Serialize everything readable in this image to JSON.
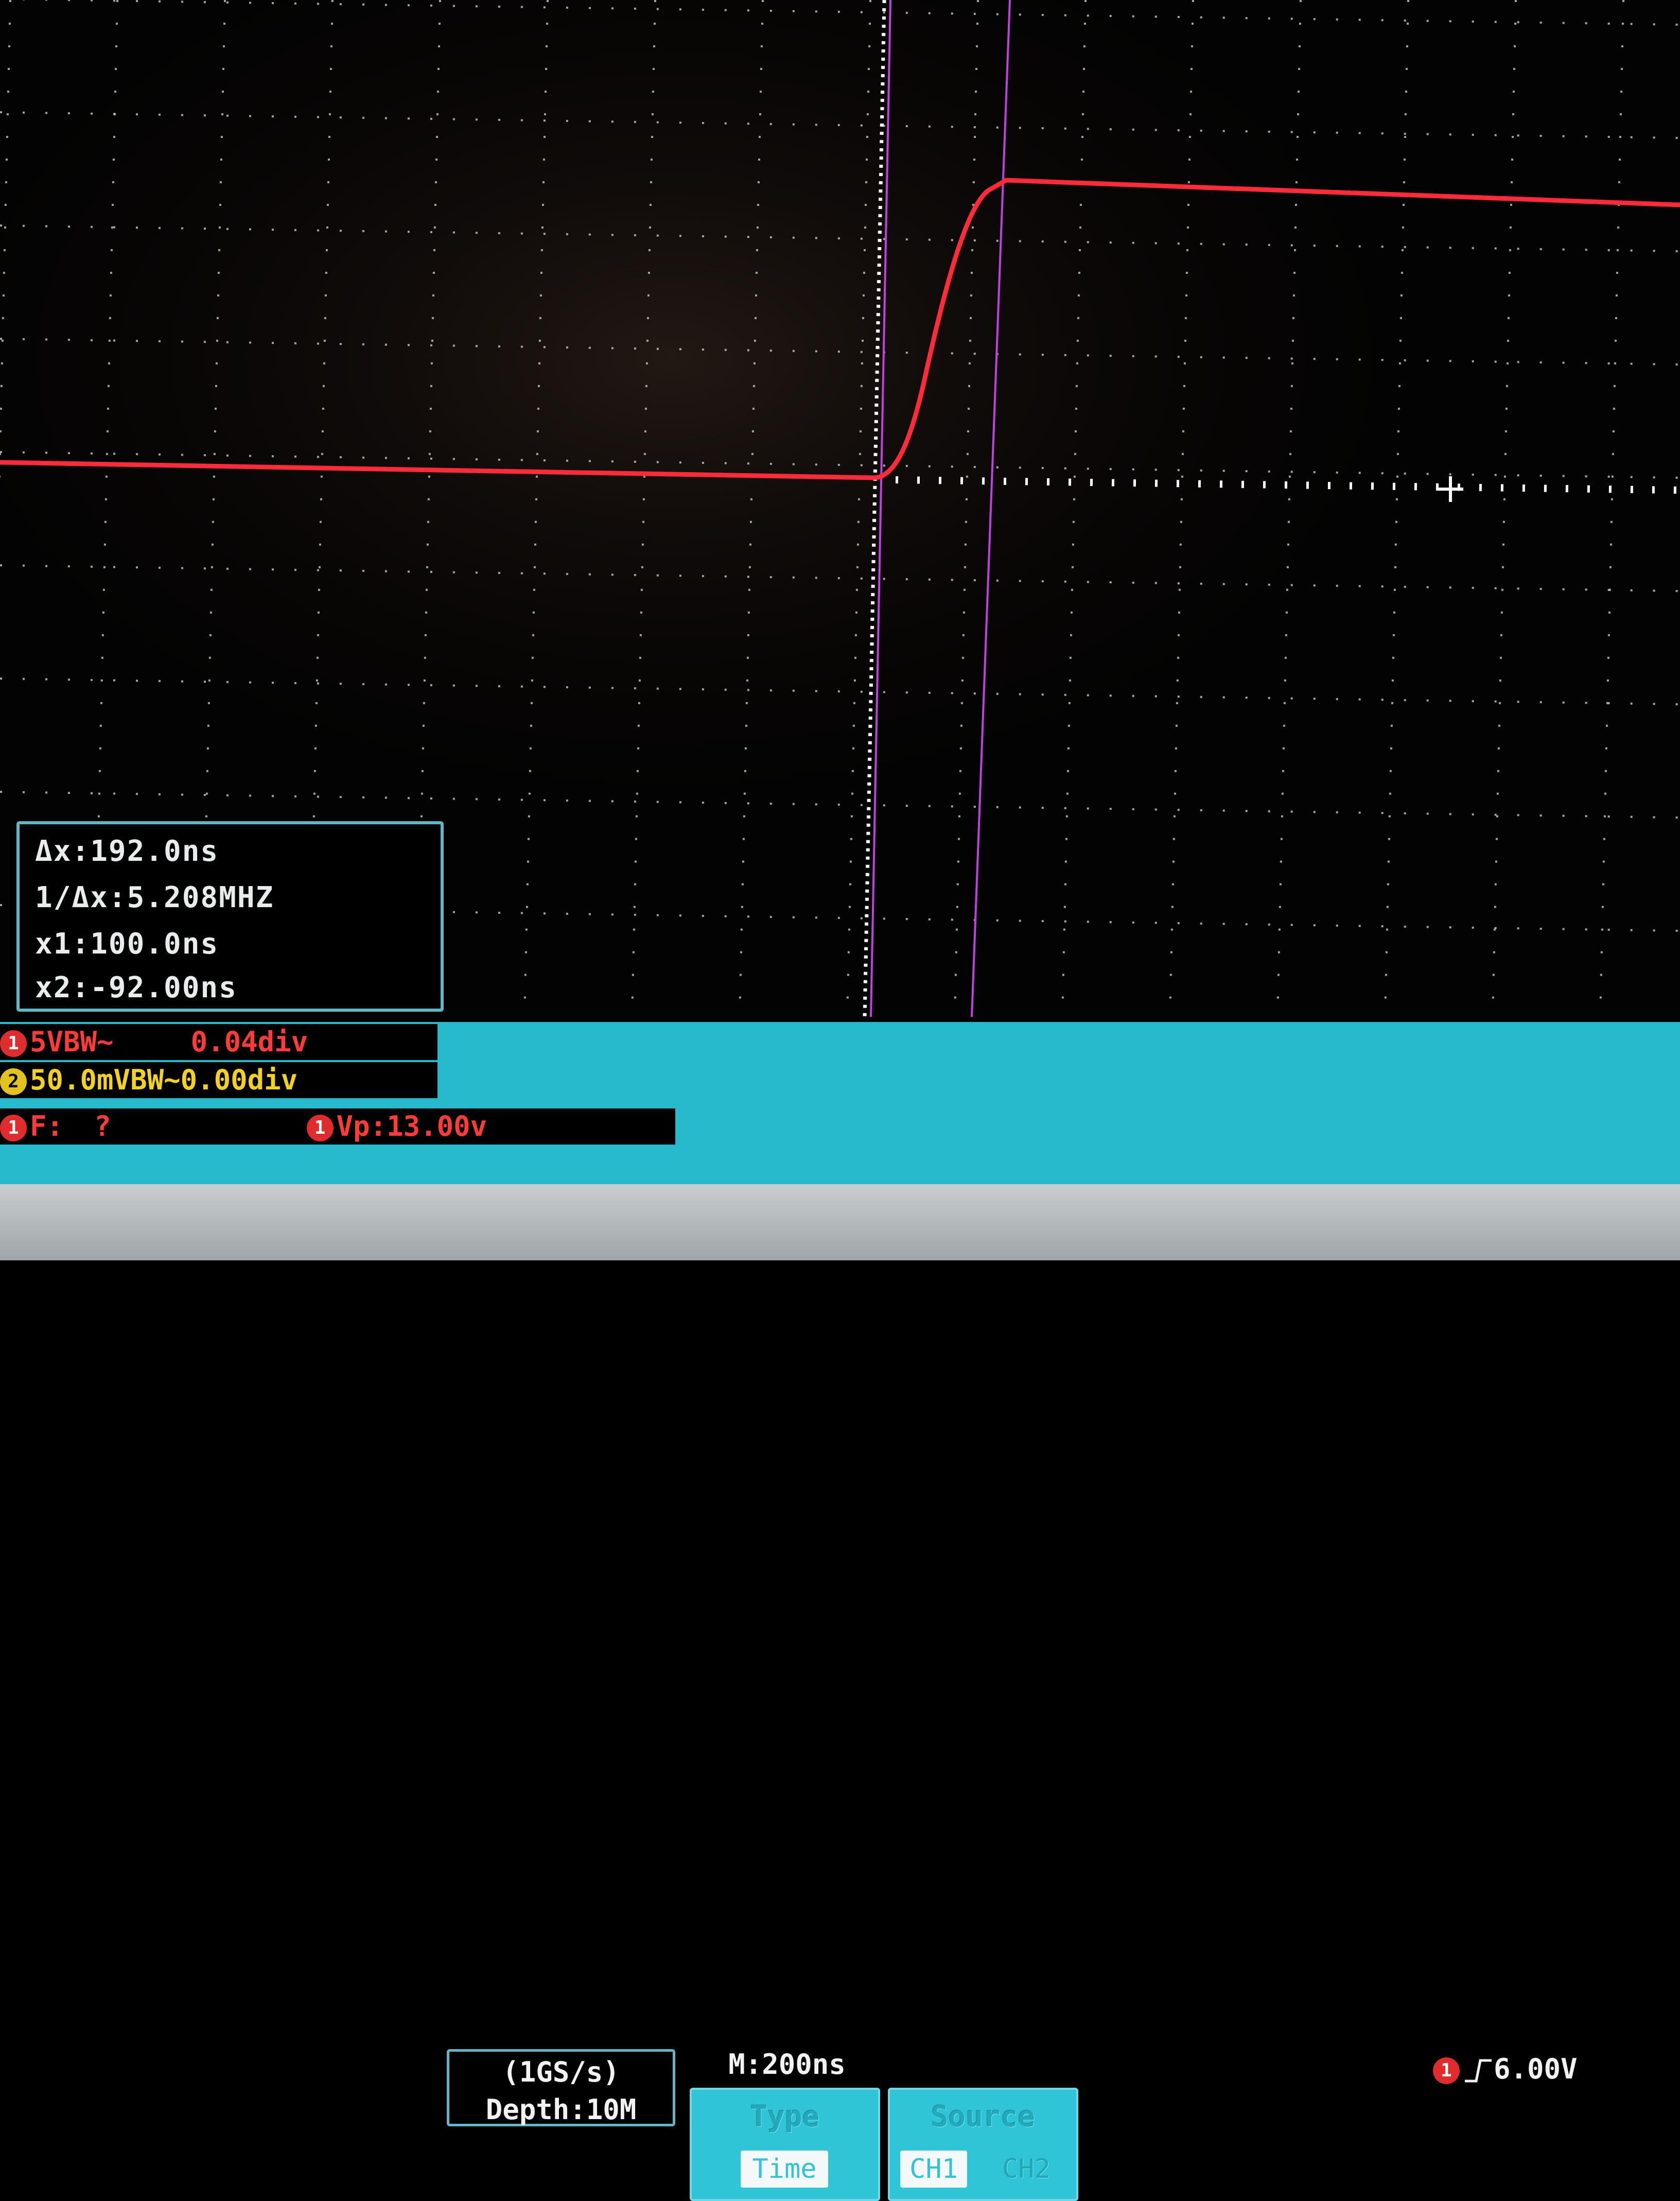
{
  "colors": {
    "trace": "#ff2a3a",
    "cursor": "#c040e0",
    "grid": "#d8d8d8",
    "panel": "#27b9cc",
    "ch1": "#e02c2c",
    "ch2": "#e3c21b"
  },
  "cursor_readout": {
    "delta_x": "Δx:192.0ns",
    "inv_delta_x": "1/Δx:5.208MHZ",
    "x1": "x1:100.0ns",
    "x2": "x2:-92.00ns"
  },
  "channels": {
    "ch1_marker": "1",
    "ch1_scale": "5VBW~",
    "ch1_offset": "0.04div",
    "ch2_marker": "2",
    "ch2_scale": "50.0mVBW~0.00div",
    "freq_marker": "1",
    "freq_label": "F:",
    "freq_value": "?",
    "vp_marker": "1",
    "vp_value": "Vp:13.00v"
  },
  "acquisition": {
    "sample_rate": "(1GS/s)",
    "depth": "Depth:10M"
  },
  "timebase": "M:200ns",
  "trigger": {
    "channel_marker": "1",
    "edge_icon": "rising-edge-icon",
    "level": "6.00V"
  },
  "menu": {
    "type_title": "Type",
    "type_option": "Time",
    "source_title": "Source",
    "source_options": [
      "CH1",
      "CH2"
    ]
  },
  "waveform": {
    "channel": "CH1",
    "shape": "rising edge",
    "low_level_div": 0.04,
    "high_level_div": 2.6,
    "rise_start_ns": -10,
    "rise_end_ns": 110
  }
}
